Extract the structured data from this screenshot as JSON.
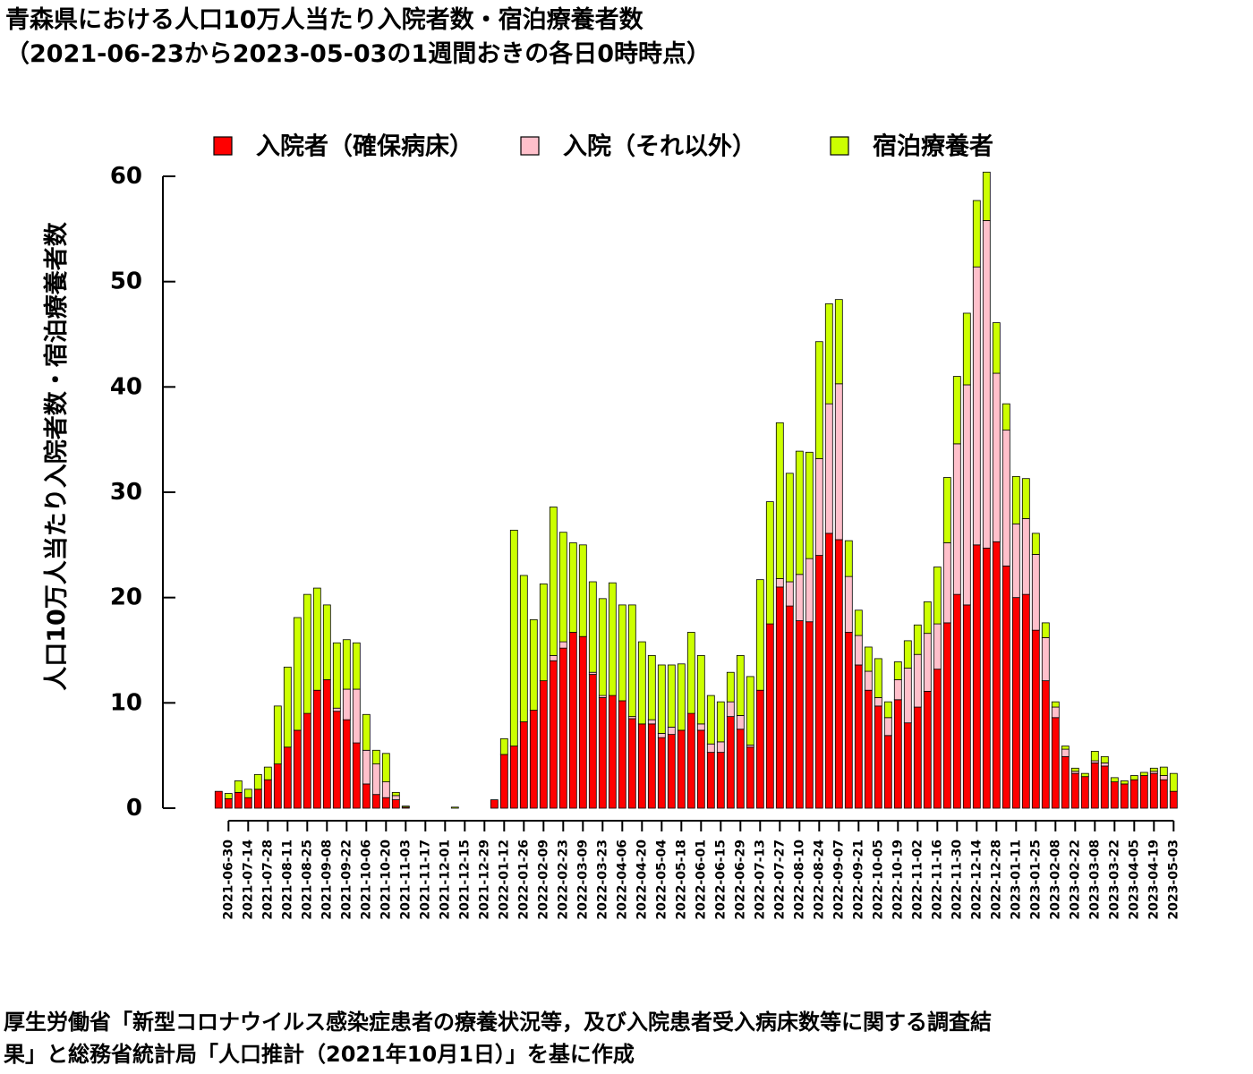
{
  "title_line1": "青森県における人口10万人当たり入院者数・宿泊療養者数",
  "title_line2": "（2021-06-23から2023-05-03の1週間おきの各日0時時点）",
  "source_line1": "厚生労働省「新型コロナウイルス感染症患者の療養状況等，及び入院患者受入病床数等に関する調査結",
  "source_line2": "果」と総務省統計局「人口推計（2021年10月1日）」を基に作成",
  "colors": {
    "hospital_secured": "#ff0000",
    "hospital_other": "#ffc0cb",
    "hotel": "#ccff00",
    "edge": "#000000"
  },
  "chart_data": {
    "type": "bar",
    "stacked": true,
    "ylabel": "人口10万人当たり入院者数・宿泊療養者数",
    "xlabel": "",
    "ylim": [
      0,
      60
    ],
    "yticks": [
      0,
      10,
      20,
      30,
      40,
      50,
      60
    ],
    "legend_position": "top",
    "x_tick_labels": [
      "2021-06-30",
      "2021-07-14",
      "2021-07-28",
      "2021-08-11",
      "2021-08-25",
      "2021-09-08",
      "2021-09-22",
      "2021-10-06",
      "2021-10-20",
      "2021-11-03",
      "2021-11-17",
      "2021-12-01",
      "2021-12-15",
      "2021-12-29",
      "2022-01-12",
      "2022-01-26",
      "2022-02-09",
      "2022-02-23",
      "2022-03-09",
      "2022-03-23",
      "2022-04-06",
      "2022-04-20",
      "2022-05-04",
      "2022-05-18",
      "2022-06-01",
      "2022-06-15",
      "2022-06-29",
      "2022-07-13",
      "2022-07-27",
      "2022-08-10",
      "2022-08-24",
      "2022-09-07",
      "2022-09-21",
      "2022-10-05",
      "2022-10-19",
      "2022-11-02",
      "2022-11-16",
      "2022-11-30",
      "2022-12-14",
      "2022-12-28",
      "2023-01-11",
      "2023-01-25",
      "2023-02-08",
      "2023-02-22",
      "2023-03-08",
      "2023-03-22",
      "2023-04-05",
      "2023-04-19",
      "2023-05-03"
    ],
    "series": [
      {
        "name": "入院者（確保病床）",
        "values": [
          1.6,
          0.9,
          1.5,
          1.0,
          1.8,
          2.7,
          4.2,
          5.8,
          7.4,
          9.0,
          11.2,
          12.2,
          9.2,
          8.4,
          6.2,
          2.3,
          1.3,
          1.0,
          0.8,
          0.1,
          0,
          0,
          0,
          0,
          0,
          0,
          0,
          0,
          0.8,
          5.1,
          5.9,
          8.2,
          9.3,
          12.1,
          14.0,
          15.2,
          16.7,
          16.3,
          12.7,
          10.5,
          10.7,
          10.2,
          8.5,
          8.0,
          8.0,
          6.7,
          7.0,
          7.4,
          9.0,
          7.4,
          5.3,
          5.3,
          8.7,
          7.5,
          5.8,
          11.2,
          17.5,
          21.0,
          19.2,
          17.8,
          17.7,
          24.0,
          26.1,
          25.5,
          16.7,
          13.6,
          11.2,
          9.7,
          6.9,
          10.3,
          8.1,
          9.6,
          11.1,
          13.2,
          17.6,
          20.3,
          19.3,
          25.0,
          24.7,
          25.3,
          23.0,
          20.0,
          20.3,
          16.9,
          12.1,
          8.6,
          4.9,
          3.3,
          3.0,
          4.3,
          4.0,
          2.5,
          2.3,
          2.7,
          3.1,
          3.3,
          2.7,
          1.6
        ]
      },
      {
        "name": "入院（それ以外）",
        "values": [
          0,
          0,
          0,
          0,
          0,
          0,
          0,
          0,
          0,
          0,
          0,
          0,
          0.3,
          2.9,
          5.1,
          3.2,
          2.9,
          1.5,
          0.4,
          0,
          0,
          0,
          0,
          0,
          0,
          0,
          0,
          0,
          0,
          0,
          0,
          0,
          0,
          0,
          0.5,
          0.6,
          0,
          0,
          0.2,
          0.2,
          0,
          0,
          0.2,
          0,
          0.4,
          0.4,
          0.7,
          0,
          0,
          0.6,
          0.8,
          1.0,
          1.4,
          1.3,
          0.2,
          0,
          0,
          0.8,
          2.3,
          4.4,
          6.0,
          9.2,
          12.3,
          14.8,
          5.3,
          2.8,
          1.8,
          0.8,
          1.7,
          1.9,
          5.2,
          5.0,
          5.5,
          4.3,
          7.6,
          14.3,
          20.9,
          26.4,
          31.1,
          16.0,
          12.9,
          7.0,
          7.2,
          7.2,
          4.1,
          1.0,
          0.7,
          0.2,
          0,
          0.2,
          0.3,
          0,
          0,
          0,
          0,
          0.2,
          0.4,
          0
        ]
      },
      {
        "name": "宿泊療養者",
        "values": [
          0,
          0.5,
          1.1,
          0.8,
          1.4,
          1.2,
          5.5,
          7.6,
          10.7,
          11.3,
          9.7,
          7.1,
          6.2,
          4.7,
          4.4,
          3.4,
          1.3,
          2.7,
          0.3,
          0.1,
          0,
          0,
          0,
          0,
          0.1,
          0,
          0,
          0,
          0,
          1.5,
          20.5,
          13.9,
          8.6,
          9.2,
          14.1,
          10.4,
          8.5,
          8.7,
          8.6,
          9.2,
          10.7,
          9.1,
          10.6,
          7.8,
          6.1,
          6.5,
          5.9,
          6.3,
          7.7,
          6.5,
          4.6,
          3.8,
          2.8,
          5.7,
          6.5,
          10.5,
          11.6,
          14.8,
          10.3,
          11.7,
          10.1,
          11.1,
          9.5,
          8.0,
          3.4,
          2.4,
          2.3,
          3.7,
          1.5,
          1.7,
          2.6,
          2.8,
          3.0,
          5.4,
          6.2,
          6.4,
          6.8,
          6.3,
          4.6,
          4.8,
          2.5,
          4.5,
          3.8,
          2.0,
          1.4,
          0.5,
          0.3,
          0.3,
          0.3,
          0.9,
          0.6,
          0.4,
          0.3,
          0.4,
          0.3,
          0.3,
          0.8,
          1.7
        ]
      }
    ]
  }
}
